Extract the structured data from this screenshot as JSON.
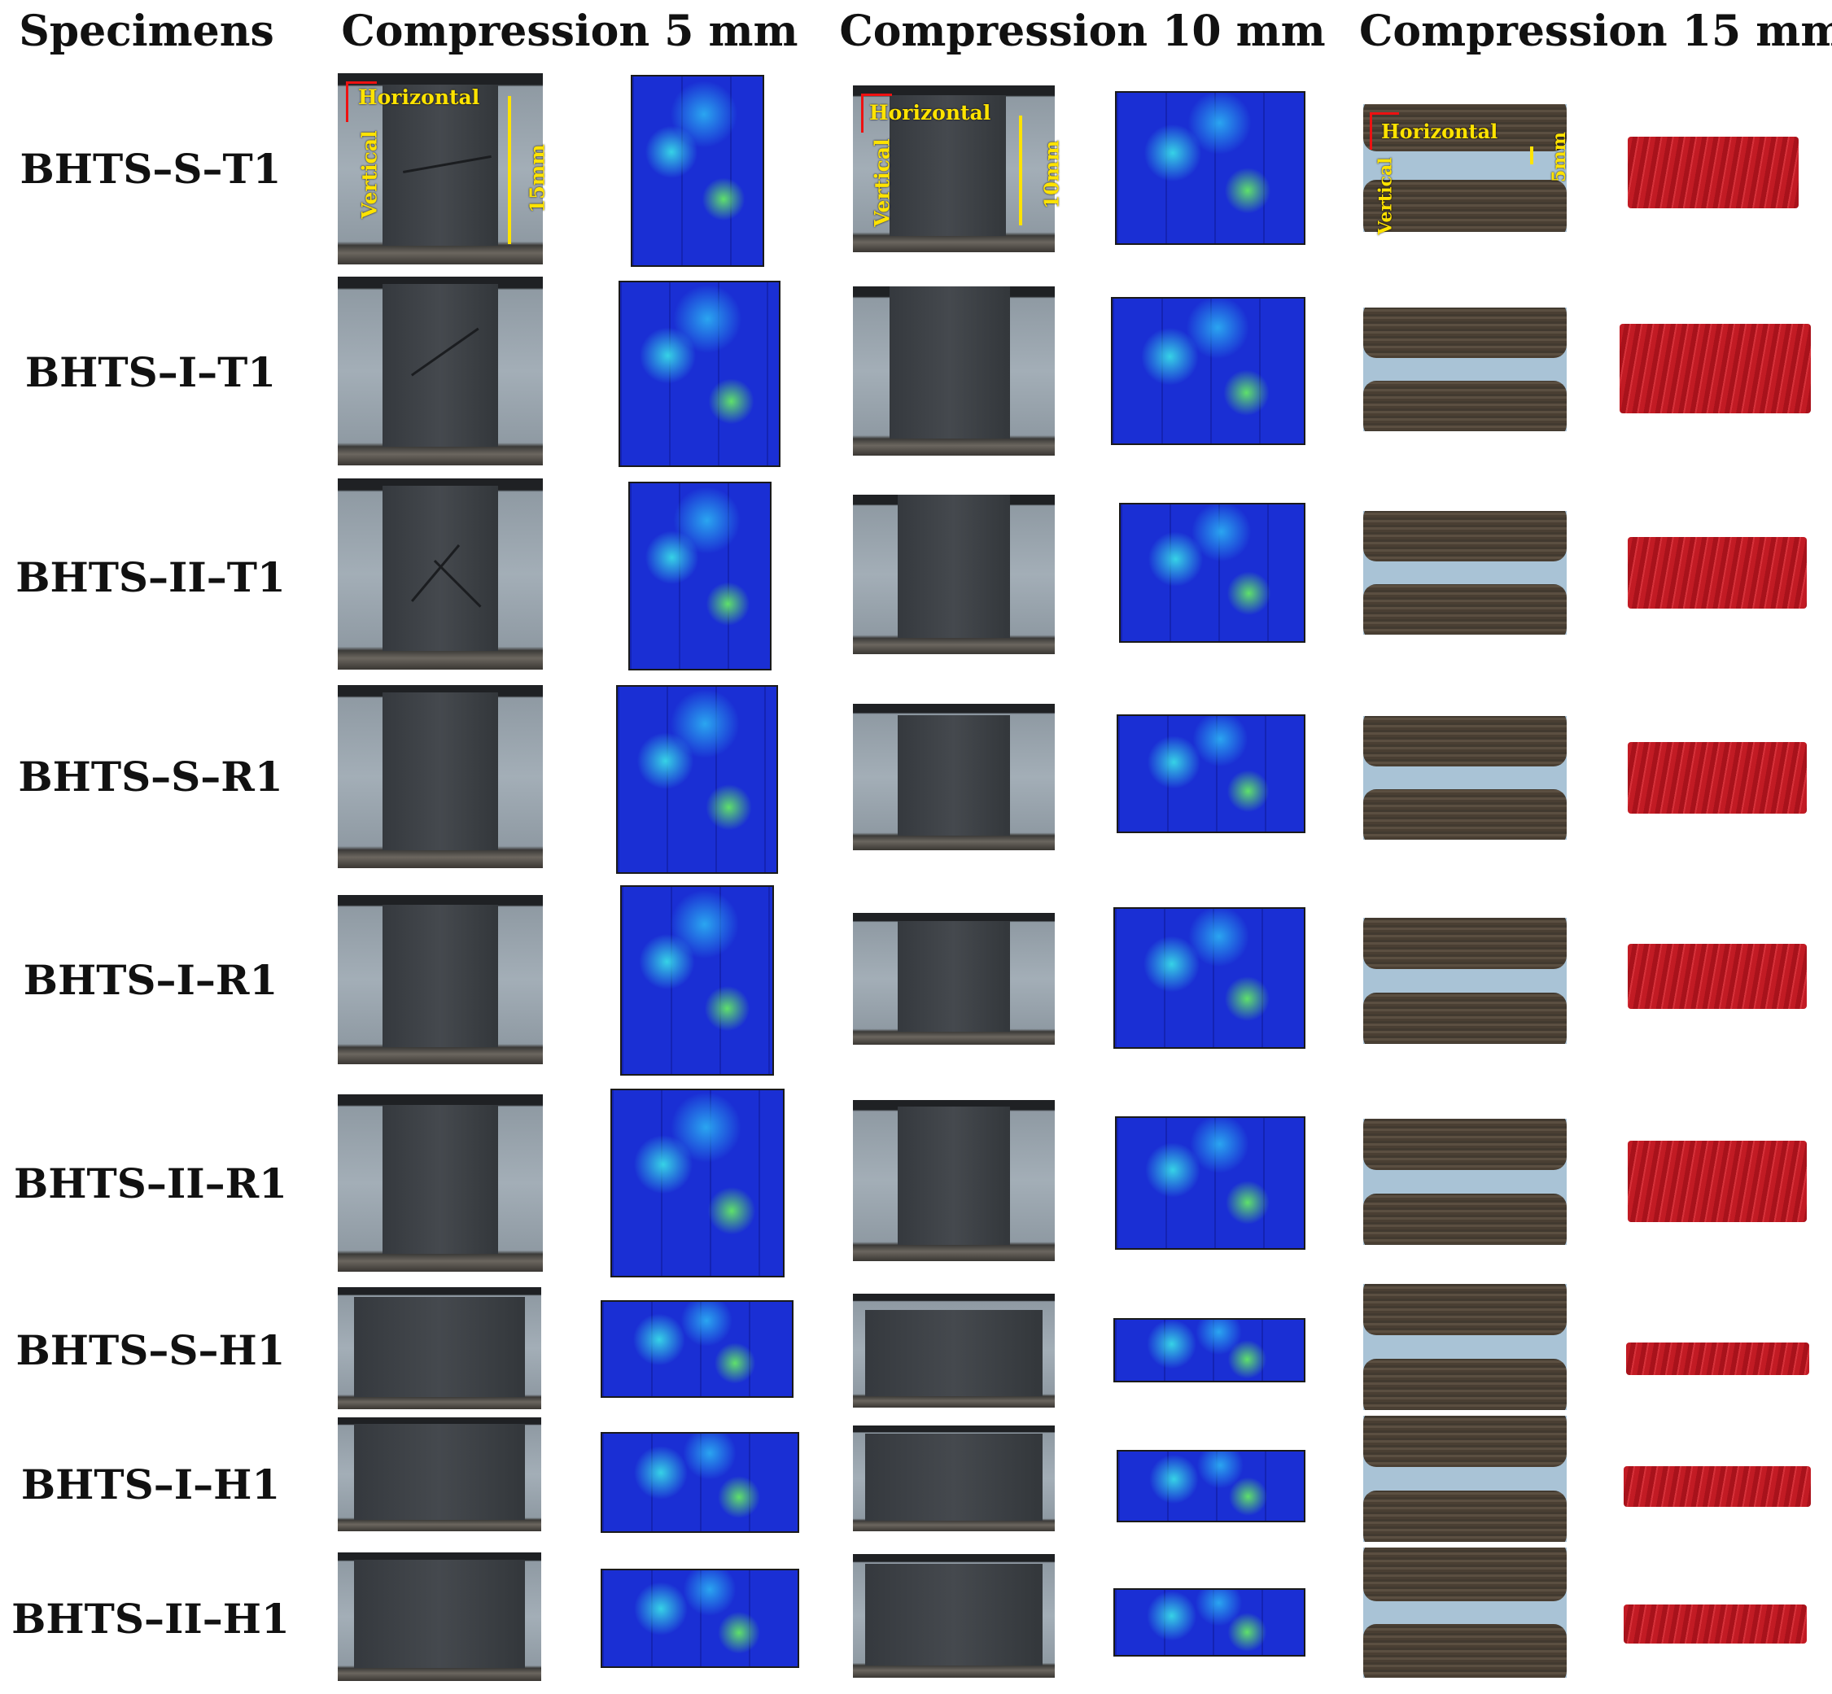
{
  "headers": {
    "specimens": "Specimens",
    "comp5": "Compression 5 mm",
    "comp10": "Compression 10 mm",
    "comp15": "Compression 15 mm"
  },
  "specimens": [
    "BHTS–S–T1",
    "BHTS–I–T1",
    "BHTS–II–T1",
    "BHTS–S–R1",
    "BHTS–I–R1",
    "BHTS–II–R1",
    "BHTS–S–H1",
    "BHTS–I–H1",
    "BHTS–II–H1"
  ],
  "annotations": {
    "horizontal": "Horizontal",
    "vertical": "Vertical",
    "h15": "15mm",
    "h10": "10mm",
    "h5": "5mm"
  },
  "colors": {
    "fem_blue": "#1a2fd4",
    "fem_green": "#5fe06a",
    "fem_red": "#c21b24",
    "annotation_yellow": "#ffe300",
    "arrow_red": "#ee1111"
  }
}
